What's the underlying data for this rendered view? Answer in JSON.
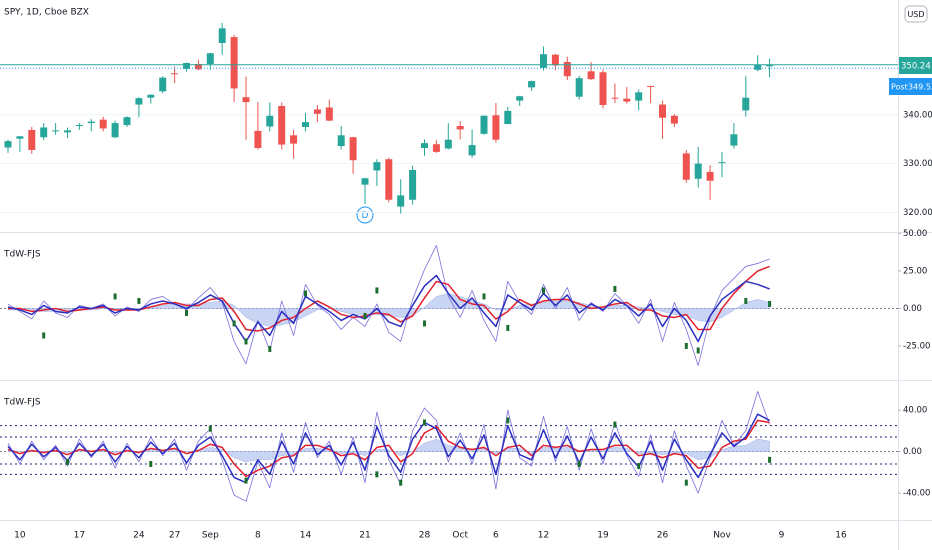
{
  "chart_data": [
    {
      "type": "candlestick",
      "title": "SPY, 1D, Cboe BZX",
      "currency": "USD",
      "categories": [
        null,
        "10",
        null,
        null,
        null,
        null,
        "17",
        null,
        null,
        null,
        null,
        "24",
        null,
        null,
        "27",
        null,
        null,
        "Sep",
        null,
        null,
        null,
        "8",
        null,
        null,
        null,
        "14",
        null,
        null,
        null,
        null,
        "21",
        null,
        null,
        null,
        null,
        "28",
        null,
        null,
        "Oct",
        null,
        null,
        "6",
        null,
        null,
        null,
        "12",
        null,
        null,
        null,
        null,
        "19",
        null,
        null,
        null,
        null,
        "26",
        null,
        null,
        null,
        null,
        "Nov",
        null,
        null,
        null,
        null,
        "9",
        null,
        null,
        null,
        null,
        "16"
      ],
      "open": [
        333.3,
        335.1,
        336.9,
        335.4,
        336.6,
        336.4,
        337.9,
        338.3,
        339.0,
        335.4,
        337.9,
        342.1,
        343.5,
        344.8,
        348.5,
        349.4,
        350.4,
        350.4,
        354.7,
        355.9,
        343.6,
        336.7,
        337.6,
        341.8,
        335.8,
        337.5,
        341.1,
        341.5,
        333.6,
        335.4,
        325.7,
        328.6,
        330.9,
        321.2,
        322.6,
        333.2,
        333.97,
        333.1,
        337.7,
        331.7,
        336.1,
        339.9,
        338.1,
        342.9,
        345.6,
        349.6,
        352.3,
        350.8,
        343.7,
        348.9,
        348.7,
        343.5,
        343.3,
        342.9,
        345.9,
        342.1,
        339.8,
        332.1,
        326.9,
        328.3,
        330.2,
        333.7,
        340.9,
        349.2,
        349.93,
        null,
        null,
        null,
        null,
        null,
        null
      ],
      "high": [
        334.9,
        335.6,
        337.5,
        338.3,
        338.3,
        337.4,
        338.3,
        339.1,
        339.6,
        338.8,
        339.7,
        343.6,
        344.2,
        347.9,
        349.9,
        350.7,
        351.3,
        352.7,
        358.8,
        356.4,
        347.8,
        342.6,
        342.5,
        342.5,
        336.9,
        340.4,
        342.0,
        343.1,
        337.7,
        335.5,
        327.1,
        330.9,
        331.2,
        326.8,
        329.6,
        334.96,
        334.8,
        338.3,
        338.7,
        337.0,
        339.9,
        342.4,
        341.6,
        343.9,
        347.0,
        354.0,
        352.5,
        351.9,
        348.0,
        350.8,
        349.3,
        346.4,
        345.7,
        345.2,
        345.9,
        342.9,
        340.1,
        332.8,
        333.4,
        329.7,
        332.4,
        338.3,
        347.9,
        352.2,
        351.5,
        null,
        null,
        null,
        null,
        null,
        null
      ],
      "low": [
        332.2,
        332.4,
        332.0,
        334.8,
        335.9,
        335.2,
        336.9,
        336.6,
        336.6,
        335.2,
        337.5,
        339.5,
        342.3,
        344.4,
        346.5,
        348.8,
        349.1,
        349.2,
        352.3,
        342.6,
        334.9,
        332.9,
        336.6,
        332.9,
        331.0,
        336.6,
        338.5,
        338.7,
        332.9,
        327.9,
        321.7,
        325.4,
        322.1,
        319.8,
        321.6,
        331.6,
        332.2,
        332.9,
        335.0,
        331.2,
        335.9,
        334.3,
        338.1,
        341.8,
        344.9,
        349.1,
        349.1,
        347.1,
        343.1,
        347.1,
        341.3,
        342.4,
        342.3,
        340.9,
        342.4,
        335.1,
        337.5,
        326.1,
        325.1,
        322.6,
        327.2,
        333.1,
        339.6,
        348.9,
        347.7,
        null,
        null,
        null,
        null,
        null,
        null
      ],
      "close": [
        334.6,
        335.6,
        332.8,
        337.4,
        336.8,
        336.8,
        337.9,
        338.6,
        337.2,
        338.3,
        339.5,
        343.4,
        344.1,
        347.6,
        348.3,
        350.6,
        349.3,
        352.6,
        357.7,
        345.4,
        342.6,
        333.2,
        339.8,
        333.9,
        334.1,
        338.5,
        340.2,
        338.8,
        335.8,
        330.7,
        327.0,
        330.3,
        322.6,
        323.5,
        328.7,
        334.2,
        332.4,
        334.9,
        337.0,
        333.8,
        339.8,
        334.9,
        340.8,
        343.8,
        346.9,
        352.4,
        350.1,
        347.9,
        347.5,
        347.3,
        342.0,
        343.4,
        342.7,
        344.6,
        345.8,
        339.4,
        338.2,
        326.7,
        330.0,
        326.5,
        330.3,
        336.0,
        343.5,
        350.2,
        350.24,
        null,
        null,
        null,
        null,
        null,
        null
      ],
      "up_color": "#26a69a",
      "down_color": "#ef5350",
      "ylim": [
        316,
        363.5
      ],
      "yticks": [
        {
          "value": 320,
          "label": "320.00"
        },
        {
          "value": 330,
          "label": "330.00"
        },
        {
          "value": 340,
          "label": "340.00"
        }
      ],
      "grid": true,
      "post": {
        "label": "Post",
        "value": 349.53
      },
      "annotation": "D"
    },
    {
      "type": "line",
      "title": "TdW-FJS",
      "ylim": [
        -47.7,
        50.3
      ],
      "yticks": [
        {
          "value": 50,
          "label": "50.00"
        },
        {
          "value": 25,
          "label": "25.00"
        },
        {
          "value": 0,
          "label": "0.00"
        },
        {
          "value": -25,
          "label": "-25.00"
        }
      ],
      "zero_line": true,
      "hlines": [],
      "series": [
        {
          "kind": "area",
          "color": "#9fb1ea",
          "values": [
            -1,
            -1,
            -2,
            -2,
            -2,
            -2,
            -1,
            -1,
            0,
            0,
            -1,
            0,
            1,
            2,
            3,
            3,
            3,
            4,
            5,
            2,
            -6,
            -10,
            -12,
            -11,
            -9,
            -5,
            -1,
            0,
            -2,
            -4,
            -4,
            -4,
            -5,
            -6,
            -5,
            1,
            8,
            10,
            8,
            5,
            3,
            -1,
            -1,
            2,
            3,
            4,
            5,
            5,
            4,
            2,
            1,
            2,
            2,
            1,
            0,
            -2,
            -4,
            -5,
            -8,
            -9,
            -6,
            -1,
            4,
            6,
            4,
            null,
            null,
            null,
            null,
            null,
            null
          ]
        },
        {
          "kind": "thin",
          "color": "#7a70dc",
          "values": [
            3,
            -2,
            -7,
            5,
            -3,
            -6,
            2,
            0,
            3,
            -5,
            1,
            -2,
            6,
            8,
            3,
            -1,
            7,
            14,
            4,
            -22,
            -37,
            -8,
            -28,
            5,
            -18,
            16,
            2,
            -4,
            -14,
            -6,
            -12,
            3,
            -16,
            -22,
            6,
            26,
            42,
            8,
            -6,
            12,
            -8,
            -22,
            18,
            4,
            -4,
            16,
            0,
            14,
            -8,
            4,
            -2,
            10,
            2,
            -10,
            6,
            -22,
            4,
            -14,
            -38,
            -6,
            12,
            20,
            28,
            30,
            33,
            null,
            null,
            null,
            null,
            null,
            null
          ]
        },
        {
          "kind": "line",
          "color": "#e3202c",
          "values": [
            0,
            0,
            -2,
            -1,
            0,
            -2,
            -1,
            0,
            1,
            -1,
            -1,
            -1,
            1,
            3,
            4,
            2,
            2,
            6,
            7,
            -2,
            -14,
            -15,
            -13,
            -8,
            -6,
            0,
            5,
            1,
            -4,
            -6,
            -5,
            -3,
            -4,
            -9,
            -5,
            7,
            18,
            16,
            6,
            3,
            2,
            -7,
            -2,
            6,
            2,
            5,
            6,
            6,
            3,
            0,
            1,
            3,
            4,
            -1,
            -1,
            -5,
            -6,
            -4,
            -14,
            -14,
            0,
            10,
            18,
            25,
            28,
            null,
            null,
            null,
            null,
            null,
            null
          ]
        },
        {
          "kind": "line",
          "color": "#2b2fc0",
          "values": [
            1,
            -1,
            -4,
            2,
            -2,
            -3,
            1,
            0,
            2,
            -3,
            0,
            -1,
            3,
            5,
            3,
            0,
            4,
            9,
            5,
            -10,
            -22,
            -9,
            -18,
            -2,
            -10,
            8,
            3,
            -2,
            -8,
            -4,
            -7,
            0,
            -9,
            -12,
            2,
            15,
            22,
            10,
            0,
            7,
            -3,
            -12,
            9,
            4,
            -1,
            10,
            2,
            9,
            -3,
            3,
            -1,
            6,
            2,
            -5,
            3,
            -12,
            0,
            -8,
            -22,
            -5,
            6,
            12,
            18,
            16,
            13,
            null,
            null,
            null,
            null,
            null,
            null
          ]
        },
        {
          "kind": "dots",
          "color": "#1b6e2e",
          "values": [
            null,
            null,
            null,
            -18,
            null,
            null,
            null,
            null,
            null,
            8,
            null,
            5,
            null,
            null,
            null,
            -3,
            null,
            null,
            null,
            -10,
            -22,
            null,
            -27,
            null,
            null,
            10,
            null,
            null,
            null,
            null,
            -5,
            12,
            null,
            null,
            null,
            -10,
            null,
            null,
            null,
            null,
            8,
            null,
            -13,
            null,
            null,
            12,
            null,
            null,
            null,
            null,
            null,
            13,
            null,
            null,
            null,
            null,
            null,
            -25,
            -28,
            null,
            null,
            null,
            5,
            null,
            3,
            null,
            null,
            null,
            null,
            null,
            null
          ]
        }
      ]
    },
    {
      "type": "line",
      "title": "TdW-FJS",
      "ylim": [
        -66,
        68
      ],
      "yticks": [
        {
          "value": 40,
          "label": "40.00"
        },
        {
          "value": 0,
          "label": "0.00"
        },
        {
          "value": -40,
          "label": "-40.00"
        }
      ],
      "zero_line": true,
      "hlines": [
        25,
        14,
        -12,
        -22
      ],
      "series": [
        {
          "kind": "area",
          "color": "#9fb1ea",
          "values": [
            2,
            0,
            1,
            0,
            1,
            -1,
            1,
            0,
            1,
            -1,
            1,
            0,
            2,
            1,
            2,
            0,
            1,
            4,
            2,
            -6,
            -10,
            -8,
            -8,
            -4,
            -3,
            3,
            3,
            2,
            -2,
            -1,
            -4,
            2,
            2,
            -4,
            0,
            8,
            12,
            6,
            3,
            2,
            3,
            -2,
            3,
            3,
            -2,
            4,
            3,
            4,
            1,
            2,
            2,
            4,
            3,
            -2,
            -1,
            -3,
            -1,
            -2,
            -8,
            -6,
            2,
            5,
            6,
            12,
            10,
            null,
            null,
            null,
            null,
            null,
            null
          ]
        },
        {
          "kind": "thin",
          "color": "#7a70dc",
          "values": [
            8,
            -12,
            10,
            -8,
            6,
            -14,
            12,
            -6,
            10,
            -16,
            8,
            -10,
            14,
            -4,
            12,
            -18,
            10,
            22,
            -8,
            -42,
            -48,
            -10,
            -35,
            18,
            -20,
            28,
            -6,
            10,
            -22,
            14,
            -30,
            38,
            -8,
            -32,
            20,
            42,
            30,
            -10,
            18,
            -12,
            26,
            -36,
            40,
            -6,
            -14,
            34,
            -10,
            24,
            -18,
            22,
            -12,
            28,
            -4,
            -24,
            16,
            -30,
            20,
            -14,
            -40,
            -6,
            30,
            6,
            20,
            58,
            26,
            null,
            null,
            null,
            null,
            null,
            null
          ]
        },
        {
          "kind": "line",
          "color": "#e3202c",
          "values": [
            2,
            -2,
            1,
            -1,
            1,
            -3,
            2,
            0,
            2,
            -3,
            1,
            -1,
            3,
            1,
            3,
            -2,
            1,
            7,
            4,
            -12,
            -24,
            -18,
            -14,
            -6,
            -4,
            6,
            6,
            2,
            -4,
            -2,
            -8,
            4,
            6,
            -10,
            -2,
            18,
            24,
            10,
            4,
            2,
            4,
            -4,
            4,
            6,
            -4,
            6,
            4,
            6,
            0,
            2,
            2,
            6,
            6,
            -4,
            -2,
            -6,
            -2,
            -4,
            -16,
            -14,
            4,
            10,
            12,
            30,
            28,
            null,
            null,
            null,
            null,
            null,
            null
          ]
        },
        {
          "kind": "line",
          "color": "#2b2fc0",
          "values": [
            5,
            -8,
            7,
            -5,
            4,
            -9,
            8,
            -4,
            7,
            -10,
            5,
            -6,
            9,
            -2,
            8,
            -11,
            6,
            14,
            -4,
            -25,
            -30,
            -8,
            -22,
            10,
            -12,
            18,
            -3,
            6,
            -13,
            9,
            -18,
            24,
            -4,
            -20,
            12,
            28,
            22,
            -5,
            11,
            -7,
            16,
            -22,
            25,
            -3,
            -8,
            21,
            -6,
            15,
            -11,
            14,
            -7,
            18,
            -2,
            -15,
            10,
            -18,
            12,
            -8,
            -25,
            -3,
            18,
            5,
            14,
            36,
            30,
            null,
            null,
            null,
            null,
            null,
            null
          ]
        },
        {
          "kind": "dots",
          "color": "#1b6e2e",
          "values": [
            null,
            null,
            null,
            null,
            null,
            -10,
            null,
            null,
            null,
            null,
            null,
            null,
            -12,
            null,
            null,
            null,
            null,
            22,
            null,
            null,
            -28,
            null,
            null,
            null,
            null,
            null,
            null,
            null,
            null,
            null,
            null,
            -22,
            null,
            -30,
            null,
            28,
            null,
            null,
            null,
            null,
            null,
            null,
            30,
            null,
            null,
            null,
            null,
            null,
            -12,
            null,
            null,
            26,
            null,
            -14,
            null,
            null,
            null,
            -30,
            null,
            null,
            null,
            null,
            null,
            null,
            -8,
            null,
            null,
            null,
            null,
            null,
            null
          ]
        }
      ]
    }
  ]
}
